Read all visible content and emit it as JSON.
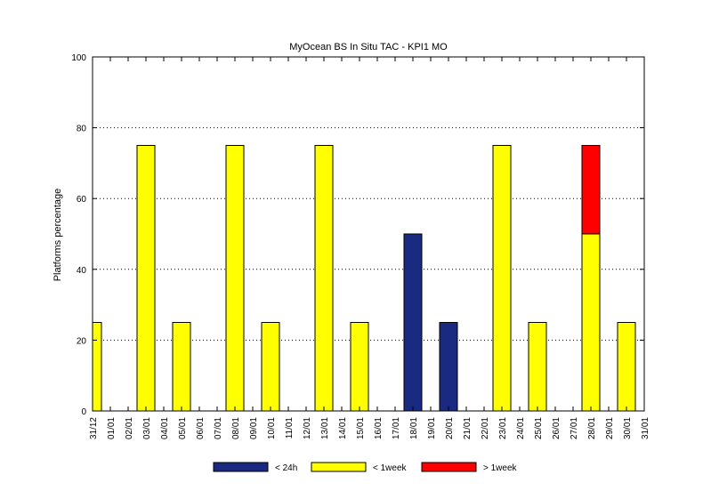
{
  "chart_data": {
    "type": "bar",
    "stacked": true,
    "title": "MyOcean  BS In Situ TAC - KPI1  MO",
    "xlabel": "",
    "ylabel": "Platforms percentage",
    "ylim": [
      0,
      100
    ],
    "yticks": [
      0,
      20,
      40,
      60,
      80,
      100
    ],
    "grid": "horizontal dotted",
    "legend_position": "bottom",
    "categories": [
      "31/12",
      "01/01",
      "02/01",
      "03/01",
      "04/01",
      "05/01",
      "06/01",
      "07/01",
      "08/01",
      "09/01",
      "10/01",
      "11/01",
      "12/01",
      "13/01",
      "14/01",
      "15/01",
      "16/01",
      "17/01",
      "18/01",
      "19/01",
      "20/01",
      "21/01",
      "22/01",
      "23/01",
      "24/01",
      "25/01",
      "26/01",
      "27/01",
      "28/01",
      "29/01",
      "30/01",
      "31/01"
    ],
    "series": [
      {
        "name": "< 24h",
        "color": "#1a2a80",
        "values": [
          0,
          0,
          0,
          0,
          0,
          0,
          0,
          0,
          0,
          0,
          0,
          0,
          0,
          0,
          0,
          0,
          0,
          0,
          50,
          0,
          25,
          0,
          0,
          0,
          0,
          0,
          0,
          0,
          0,
          0,
          0,
          0
        ]
      },
      {
        "name": "< 1week",
        "color": "#ffff00",
        "values": [
          25,
          0,
          0,
          75,
          0,
          25,
          0,
          0,
          75,
          0,
          25,
          0,
          0,
          75,
          0,
          25,
          0,
          0,
          0,
          0,
          0,
          0,
          0,
          75,
          0,
          25,
          0,
          0,
          50,
          0,
          25,
          0
        ]
      },
      {
        "name": "> 1week",
        "color": "#ff0000",
        "values": [
          0,
          0,
          0,
          0,
          0,
          0,
          0,
          0,
          0,
          0,
          0,
          0,
          0,
          0,
          0,
          0,
          0,
          0,
          0,
          0,
          0,
          0,
          0,
          0,
          0,
          0,
          0,
          0,
          25,
          0,
          0,
          0
        ]
      }
    ]
  }
}
